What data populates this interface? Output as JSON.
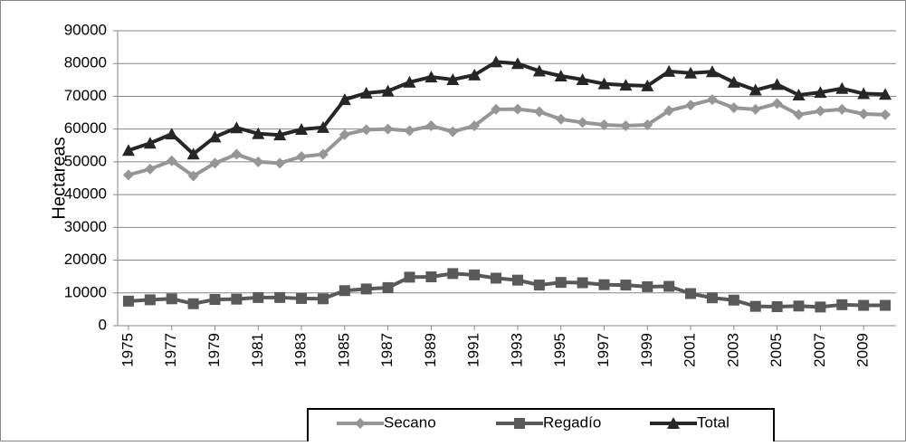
{
  "chart_data": {
    "type": "line",
    "y_label": "Hectareas",
    "x": [
      1975,
      1976,
      1977,
      1978,
      1979,
      1980,
      1981,
      1982,
      1983,
      1984,
      1985,
      1986,
      1987,
      1988,
      1989,
      1990,
      1991,
      1992,
      1993,
      1994,
      1995,
      1996,
      1997,
      1998,
      1999,
      2000,
      2001,
      2002,
      2003,
      2004,
      2005,
      2006,
      2007,
      2008,
      2009,
      2010
    ],
    "xlim": [
      1974.5,
      2010.5
    ],
    "xticks": [
      1975,
      1977,
      1979,
      1981,
      1983,
      1985,
      1987,
      1989,
      1991,
      1993,
      1995,
      1997,
      1999,
      2001,
      2003,
      2005,
      2007,
      2009
    ],
    "ylim": [
      0,
      90000
    ],
    "yticks": [
      0,
      10000,
      20000,
      30000,
      40000,
      50000,
      60000,
      70000,
      80000,
      90000
    ],
    "grid": true,
    "legend": "bottom",
    "series": [
      {
        "name": "Secano",
        "color": "#969696",
        "marker": "diamond",
        "values": [
          46000,
          47800,
          50300,
          45700,
          49600,
          52300,
          50000,
          49600,
          51600,
          52300,
          58300,
          59800,
          60000,
          59500,
          61000,
          59200,
          61000,
          66000,
          66100,
          65300,
          63000,
          62000,
          61300,
          61000,
          61300,
          65600,
          67300,
          69000,
          66500,
          66000,
          67800,
          64400,
          65500,
          66000,
          64600,
          64400
        ]
      },
      {
        "name": "Regadío",
        "color": "#595959",
        "marker": "square",
        "values": [
          7500,
          7900,
          8200,
          6700,
          8000,
          8100,
          8600,
          8600,
          8300,
          8200,
          10700,
          11200,
          11600,
          14800,
          14900,
          15900,
          15500,
          14500,
          13900,
          12400,
          13200,
          13100,
          12500,
          12400,
          11900,
          12000,
          9800,
          8500,
          7800,
          5900,
          5800,
          6000,
          5700,
          6400,
          6200,
          6200
        ]
      },
      {
        "name": "Total",
        "color": "#262626",
        "marker": "triangle",
        "values": [
          53500,
          55700,
          58500,
          52400,
          57600,
          60400,
          58600,
          58200,
          59900,
          60500,
          69000,
          71000,
          71600,
          74300,
          75900,
          75100,
          76500,
          80500,
          80000,
          77700,
          76200,
          75100,
          73800,
          73400,
          73200,
          77600,
          77100,
          77500,
          74300,
          71900,
          73600,
          70400,
          71200,
          72400,
          70800,
          70600
        ]
      }
    ]
  }
}
